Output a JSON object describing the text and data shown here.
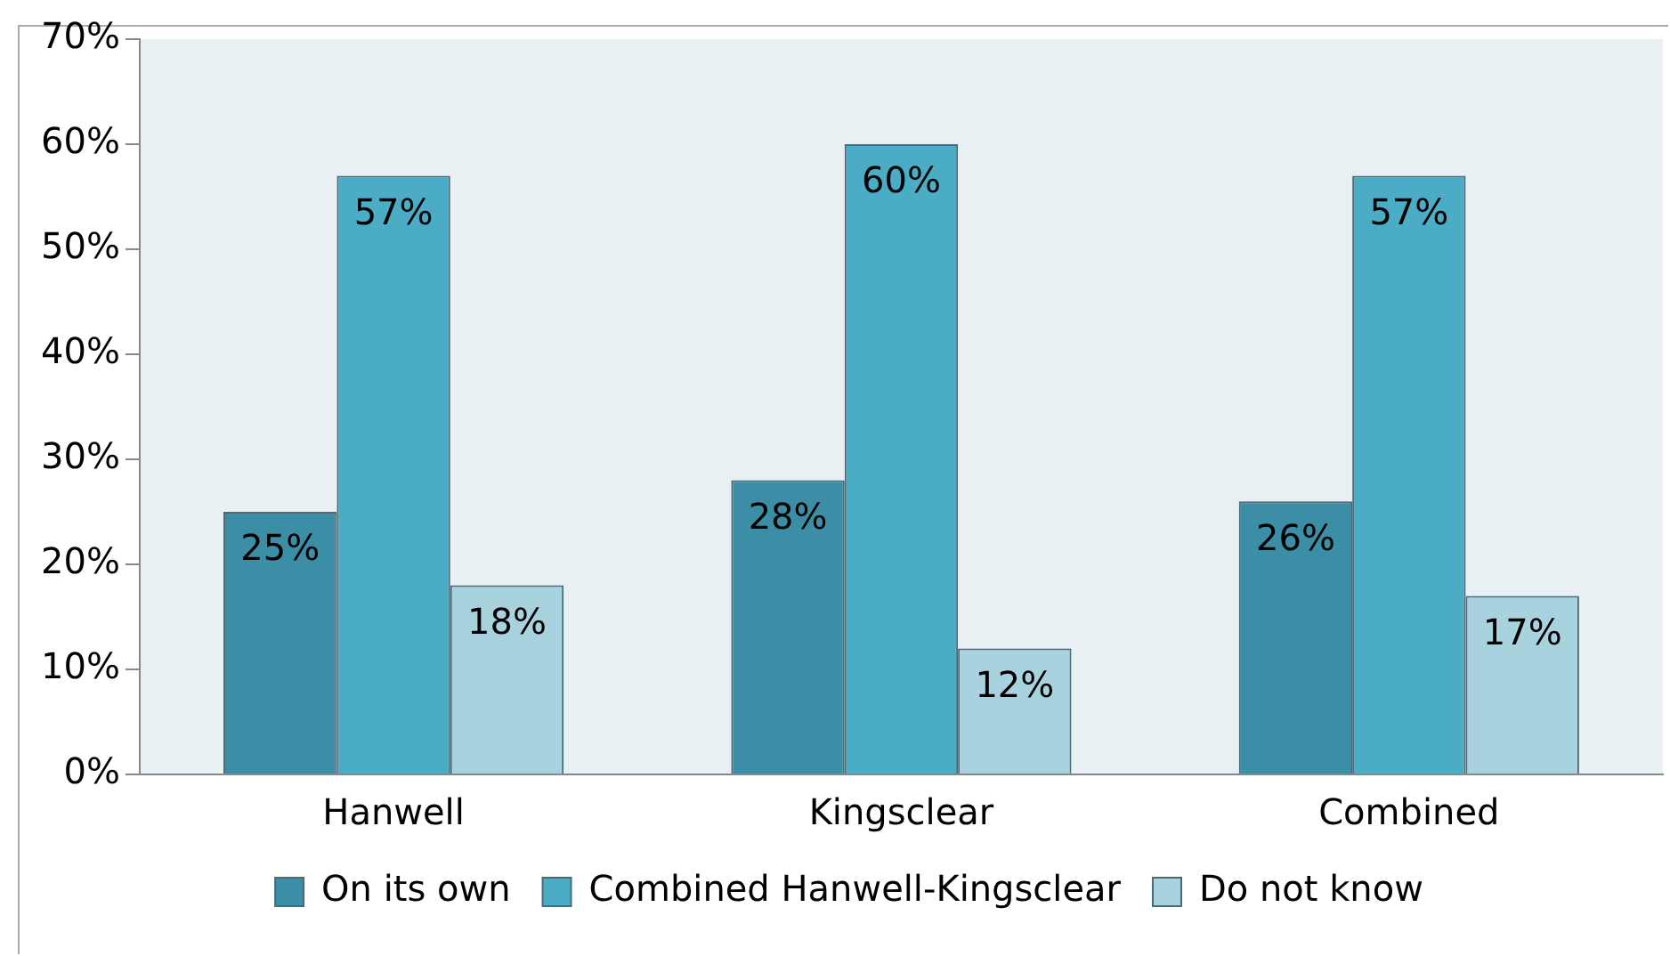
{
  "chart_data": {
    "type": "bar",
    "categories": [
      "Hanwell",
      "Kingsclear",
      "Combined"
    ],
    "series": [
      {
        "name": "On its own",
        "color": "#3b8ea5",
        "values": [
          25,
          28,
          26
        ]
      },
      {
        "name": "Combined Hanwell-Kingsclear",
        "color": "#4bacc6",
        "values": [
          57,
          60,
          57
        ]
      },
      {
        "name": "Do not know",
        "color": "#a9d2df",
        "values": [
          18,
          12,
          17
        ]
      }
    ],
    "ylim": [
      0,
      70
    ],
    "yticks": [
      {
        "value": 0,
        "label": "0%"
      },
      {
        "value": 10,
        "label": "10%"
      },
      {
        "value": 20,
        "label": "20%"
      },
      {
        "value": 30,
        "label": "30%"
      },
      {
        "value": 40,
        "label": "40%"
      },
      {
        "value": 50,
        "label": "50%"
      },
      {
        "value": 60,
        "label": "60%"
      },
      {
        "value": 70,
        "label": "70%"
      }
    ],
    "value_labels": [
      [
        "25%",
        "28%",
        "26%"
      ],
      [
        "57%",
        "60%",
        "57%"
      ],
      [
        "18%",
        "12%",
        "17%"
      ]
    ],
    "grid": false,
    "legend": "bottom"
  }
}
